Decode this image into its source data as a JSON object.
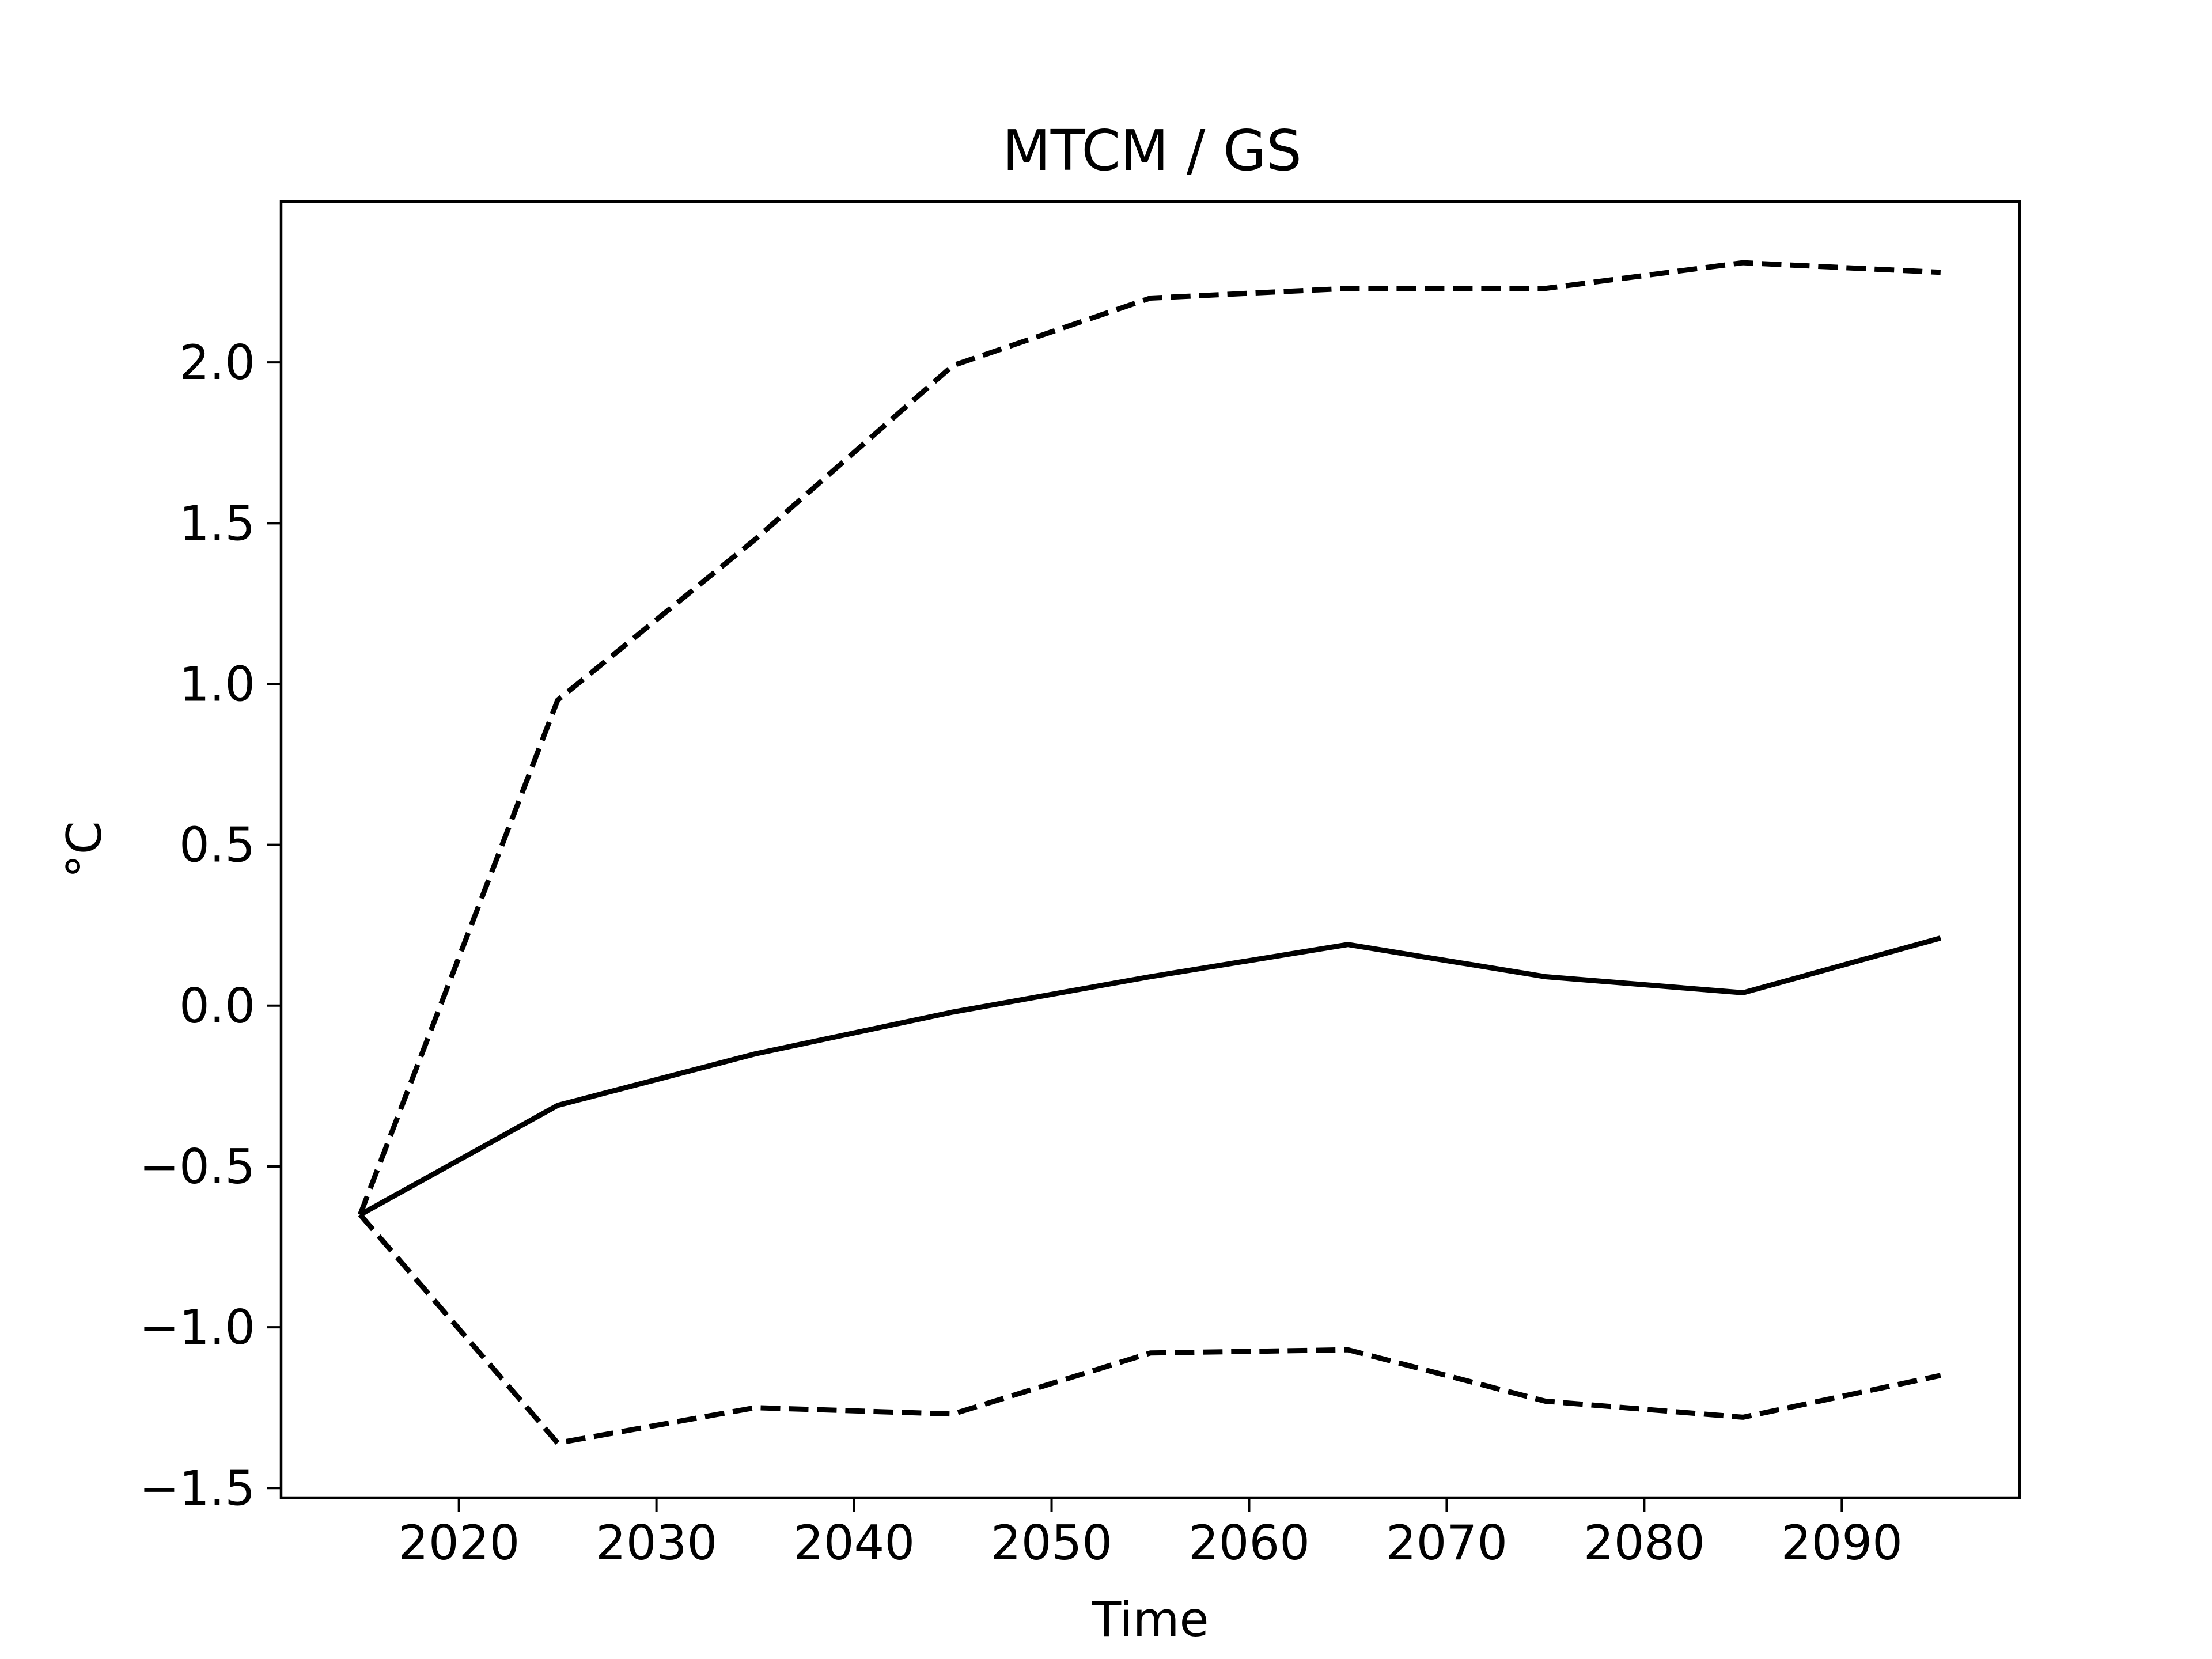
{
  "chart_data": {
    "type": "line",
    "title": "MTCM / GS",
    "xlabel": "Time",
    "ylabel": "°C",
    "xlim": [
      2011,
      2099
    ],
    "ylim": [
      -1.53,
      2.5
    ],
    "x_ticks": [
      2020,
      2030,
      2040,
      2050,
      2060,
      2070,
      2080,
      2090
    ],
    "x_tick_labels": [
      "2020",
      "2030",
      "2040",
      "2050",
      "2060",
      "2070",
      "2080",
      "2090"
    ],
    "y_ticks": [
      -1.5,
      -1.0,
      -0.5,
      0.0,
      0.5,
      1.0,
      1.5,
      2.0
    ],
    "y_tick_labels": [
      "−1.5",
      "−1.0",
      "−0.5",
      "0.0",
      "0.5",
      "1.0",
      "1.5",
      "2.0"
    ],
    "grid": false,
    "x": [
      2015,
      2025,
      2035,
      2045,
      2055,
      2065,
      2075,
      2085,
      2095
    ],
    "series": [
      {
        "style": "solid",
        "color": "#000000",
        "values": [
          -0.65,
          -0.31,
          -0.15,
          -0.02,
          0.09,
          0.19,
          0.09,
          0.04,
          0.21
        ]
      },
      {
        "style": "dashed",
        "color": "#000000",
        "values": [
          -0.65,
          0.95,
          1.45,
          1.99,
          2.2,
          2.23,
          2.23,
          2.31,
          2.28
        ]
      },
      {
        "style": "dashed",
        "color": "#000000",
        "values": [
          -0.65,
          -1.36,
          -1.25,
          -1.27,
          -1.08,
          -1.07,
          -1.23,
          -1.28,
          -1.15
        ]
      }
    ]
  }
}
